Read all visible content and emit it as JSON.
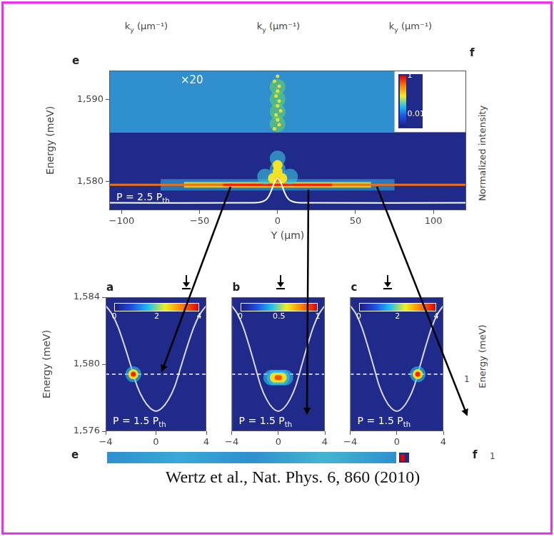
{
  "page": {
    "header_labels": [
      [
        {
          "text": "k"
        },
        {
          "text": "y",
          "sub": true
        },
        {
          "text": " (μm⁻¹)"
        }
      ],
      [
        {
          "text": "k"
        },
        {
          "text": "y",
          "sub": true
        },
        {
          "text": " (μm⁻¹)"
        }
      ],
      [
        {
          "text": "k"
        },
        {
          "text": "y",
          "sub": true
        },
        {
          "text": " (μm⁻¹)"
        }
      ]
    ],
    "right_panel_letter": "f",
    "right_axis_title": "Normalized intensity",
    "right_axis_title_2": "Energy (meV)",
    "right_tick": "1",
    "bottom_panel_letter": "e",
    "bottom_right_letter": "f",
    "bottom_right_tick": "1",
    "citation": "Wertz et al., Nat. Phys. 6, 860 (2010)"
  },
  "chart_data": [
    {
      "type": "line",
      "panel": "e",
      "xlabel": "Y (μm)",
      "ylabel": "Energy (meV)",
      "xlim": [
        -108,
        121
      ],
      "xticks": [
        {
          "value": -100,
          "label": "−100"
        },
        {
          "value": -50,
          "label": "−50"
        },
        0,
        50,
        100
      ],
      "ylim": [
        1576.5,
        1593.5
      ],
      "yticks": [
        {
          "value": 1580,
          "label": "1,580"
        },
        {
          "value": 1590,
          "label": "1,590"
        }
      ],
      "grid": false,
      "annotation": [
        {
          "text": "P = 2.5 P"
        },
        {
          "text": "th",
          "sub": true
        }
      ],
      "inset": {
        "x": [
          -108,
          75
        ],
        "y": [
          1586,
          1593.5
        ],
        "label": "×20",
        "color": "#2f8fcf"
      },
      "colorbar": {
        "range": [
          0.002,
          1
        ],
        "ticks": [
          1,
          0.01
        ],
        "log": true
      },
      "series": [
        {
          "type": "line",
          "line_style": "wide",
          "color": "#35b5e5",
          "x": [
            -75,
            75
          ],
          "values": [
            1579.6,
            1579.6
          ]
        },
        {
          "type": "line",
          "line_style": "medium",
          "color": "#e8dc1e",
          "x": [
            -60,
            60
          ],
          "values": [
            1579.6,
            1579.6
          ]
        },
        {
          "type": "line",
          "line_style": "solid",
          "color": "#f07010",
          "x": [
            -108,
            121
          ],
          "values": [
            1579.6,
            1579.6
          ]
        },
        {
          "type": "line",
          "line_style": "solid",
          "color": "#ff1a00",
          "x": [
            -35,
            35
          ],
          "values": [
            1579.6,
            1579.6
          ]
        },
        {
          "type": "scatter",
          "marker": "halo",
          "color": "#3cc8e0",
          "x": [
            -8,
            0,
            8,
            0
          ],
          "values": [
            1580.6,
            1581.5,
            1580.6,
            1582.8
          ]
        },
        {
          "type": "scatter",
          "marker": "blob",
          "color": "#f2e424",
          "x": [
            -3,
            0,
            3,
            0
          ],
          "values": [
            1580.4,
            1581.2,
            1580.4,
            1582
          ]
        },
        {
          "type": "scatter",
          "marker": "core",
          "color": "#ff7a00",
          "x": [
            0
          ],
          "values": [
            1580.2
          ]
        },
        {
          "type": "scatter",
          "marker": "halo",
          "color": "#6ad060",
          "x": [
            0,
            0,
            0,
            0
          ],
          "values": [
            1587,
            1588.5,
            1590,
            1591.5
          ]
        },
        {
          "type": "scatter",
          "marker": "dot",
          "color": "#e0e040",
          "x": [
            -2,
            1,
            0,
            -1,
            2,
            0,
            1,
            -1,
            0,
            1,
            -2,
            0
          ],
          "values": [
            1586.4,
            1586.9,
            1587.5,
            1588.1,
            1588.6,
            1589.2,
            1589.8,
            1590.4,
            1591,
            1591.6,
            1592.2,
            1592.8
          ]
        },
        {
          "type": "line",
          "line_style": "thin",
          "color": "#ffffff",
          "x": [
            -108,
            -20,
            -12,
            -8,
            -6,
            -4,
            -2,
            0,
            2,
            4,
            6,
            8,
            12,
            20,
            121
          ],
          "values": [
            1577.4,
            1577.4,
            1577.45,
            1577.7,
            1578.1,
            1578.9,
            1579.9,
            1580.4,
            1579.9,
            1578.9,
            1578.1,
            1577.7,
            1577.45,
            1577.4,
            1577.4
          ]
        }
      ]
    },
    {
      "type": "line",
      "panel": "a",
      "ylabel": "Energy (meV)",
      "xlim": [
        -4,
        4
      ],
      "xticks": [
        {
          "value": -4,
          "label": "−4"
        },
        0,
        4
      ],
      "ylim": [
        1576,
        1584
      ],
      "yticks": [
        {
          "value": 1576,
          "label": "1,576"
        },
        {
          "value": 1580,
          "label": "1,580"
        },
        {
          "value": 1584,
          "label": "1,584"
        }
      ],
      "grid": false,
      "annotation": [
        {
          "text": "P = 1.5 P"
        },
        {
          "text": "th",
          "sub": true
        }
      ],
      "colorbar": {
        "range": [
          0,
          4
        ],
        "ticks": [
          0,
          2,
          4
        ]
      },
      "series": [
        {
          "type": "line",
          "line_style": "thin",
          "color": "#d8d8e8",
          "x": [
            -4,
            -3.5,
            -3,
            -2.5,
            -2,
            -1.5,
            -1,
            -0.5,
            0,
            0.5,
            1,
            1.5,
            2,
            2.5,
            3,
            3.5,
            4
          ],
          "values": [
            1583.5,
            1583,
            1582.2,
            1581.1,
            1579.9,
            1578.7,
            1577.9,
            1577.4,
            1577.2,
            1577.4,
            1577.9,
            1578.7,
            1579.9,
            1581.1,
            1582.2,
            1583,
            1583.5
          ]
        },
        {
          "type": "line",
          "line_style": "dashed",
          "color": "#ffffff",
          "x": [
            -4,
            4
          ],
          "values": [
            1579.4,
            1579.4
          ]
        },
        {
          "type": "scatter",
          "marker": "halo",
          "color": "#30c8f0",
          "x": [
            -1.8
          ],
          "values": [
            1579.4
          ]
        },
        {
          "type": "scatter",
          "marker": "blob",
          "color": "#f0e020",
          "x": [
            -1.8
          ],
          "values": [
            1579.4
          ]
        },
        {
          "type": "scatter",
          "marker": "core",
          "color": "#ff2000",
          "x": [
            -1.8
          ],
          "values": [
            1579.4
          ]
        }
      ]
    },
    {
      "type": "line",
      "panel": "b",
      "xlim": [
        -4,
        4
      ],
      "xticks": [
        {
          "value": -4,
          "label": "−4"
        },
        0,
        4
      ],
      "ylim": [
        1576,
        1584
      ],
      "tick_labels": "x",
      "grid": false,
      "annotation": [
        {
          "text": "P = 1.5 P"
        },
        {
          "text": "th",
          "sub": true
        }
      ],
      "colorbar": {
        "range": [
          0,
          1
        ],
        "ticks": [
          0,
          0.5,
          1
        ]
      },
      "series": [
        {
          "type": "line",
          "line_style": "thin",
          "color": "#d8d8e8",
          "x": [
            -4,
            -3.5,
            -3,
            -2.5,
            -2,
            -1.5,
            -1,
            -0.5,
            0,
            0.5,
            1,
            1.5,
            2,
            2.5,
            3,
            3.5,
            4
          ],
          "values": [
            1583.5,
            1583,
            1582.2,
            1581.1,
            1579.9,
            1578.7,
            1577.9,
            1577.4,
            1577.2,
            1577.4,
            1577.9,
            1578.7,
            1579.9,
            1581.1,
            1582.2,
            1583,
            1583.5
          ]
        },
        {
          "type": "line",
          "line_style": "dashed",
          "color": "#ffffff",
          "x": [
            -4,
            4
          ],
          "values": [
            1579.4,
            1579.4
          ]
        },
        {
          "type": "scatter",
          "marker": "halo",
          "color": "#30c8f0",
          "x": [
            -0.6,
            -0.3,
            0,
            0.3,
            0.6
          ],
          "values": [
            1579.2,
            1579.2,
            1579.2,
            1579.2,
            1579.2
          ]
        },
        {
          "type": "scatter",
          "marker": "blob",
          "color": "#f0e020",
          "x": [
            -0.3,
            0,
            0.3
          ],
          "values": [
            1579.2,
            1579.2,
            1579.2
          ]
        },
        {
          "type": "scatter",
          "marker": "core",
          "color": "#ff5000",
          "x": [
            -0.1,
            0.1
          ],
          "values": [
            1579.2,
            1579.2
          ]
        }
      ]
    },
    {
      "type": "line",
      "panel": "c",
      "xlim": [
        -4,
        4
      ],
      "xticks": [
        {
          "value": -4,
          "label": "−4"
        },
        0,
        4
      ],
      "ylim": [
        1576,
        1584
      ],
      "tick_labels": "x",
      "grid": false,
      "annotation": [
        {
          "text": "P = 1.5 P"
        },
        {
          "text": "th",
          "sub": true
        }
      ],
      "colorbar": {
        "range": [
          0,
          4
        ],
        "ticks": [
          0,
          2,
          4
        ]
      },
      "series": [
        {
          "type": "line",
          "line_style": "thin",
          "color": "#d8d8e8",
          "x": [
            -4,
            -3.5,
            -3,
            -2.5,
            -2,
            -1.5,
            -1,
            -0.5,
            0,
            0.5,
            1,
            1.5,
            2,
            2.5,
            3,
            3.5,
            4
          ],
          "values": [
            1583.5,
            1583,
            1582.2,
            1581.1,
            1579.9,
            1578.7,
            1577.9,
            1577.4,
            1577.2,
            1577.4,
            1577.9,
            1578.7,
            1579.9,
            1581.1,
            1582.2,
            1583,
            1583.5
          ]
        },
        {
          "type": "line",
          "line_style": "dashed",
          "color": "#ffffff",
          "x": [
            -4,
            4
          ],
          "values": [
            1579.4,
            1579.4
          ]
        },
        {
          "type": "scatter",
          "marker": "halo",
          "color": "#30c8f0",
          "x": [
            1.8
          ],
          "values": [
            1579.4
          ]
        },
        {
          "type": "scatter",
          "marker": "blob",
          "color": "#f0e020",
          "x": [
            1.8
          ],
          "values": [
            1579.4
          ]
        },
        {
          "type": "scatter",
          "marker": "core",
          "color": "#ff2000",
          "x": [
            1.8
          ],
          "values": [
            1579.4
          ]
        }
      ]
    }
  ]
}
